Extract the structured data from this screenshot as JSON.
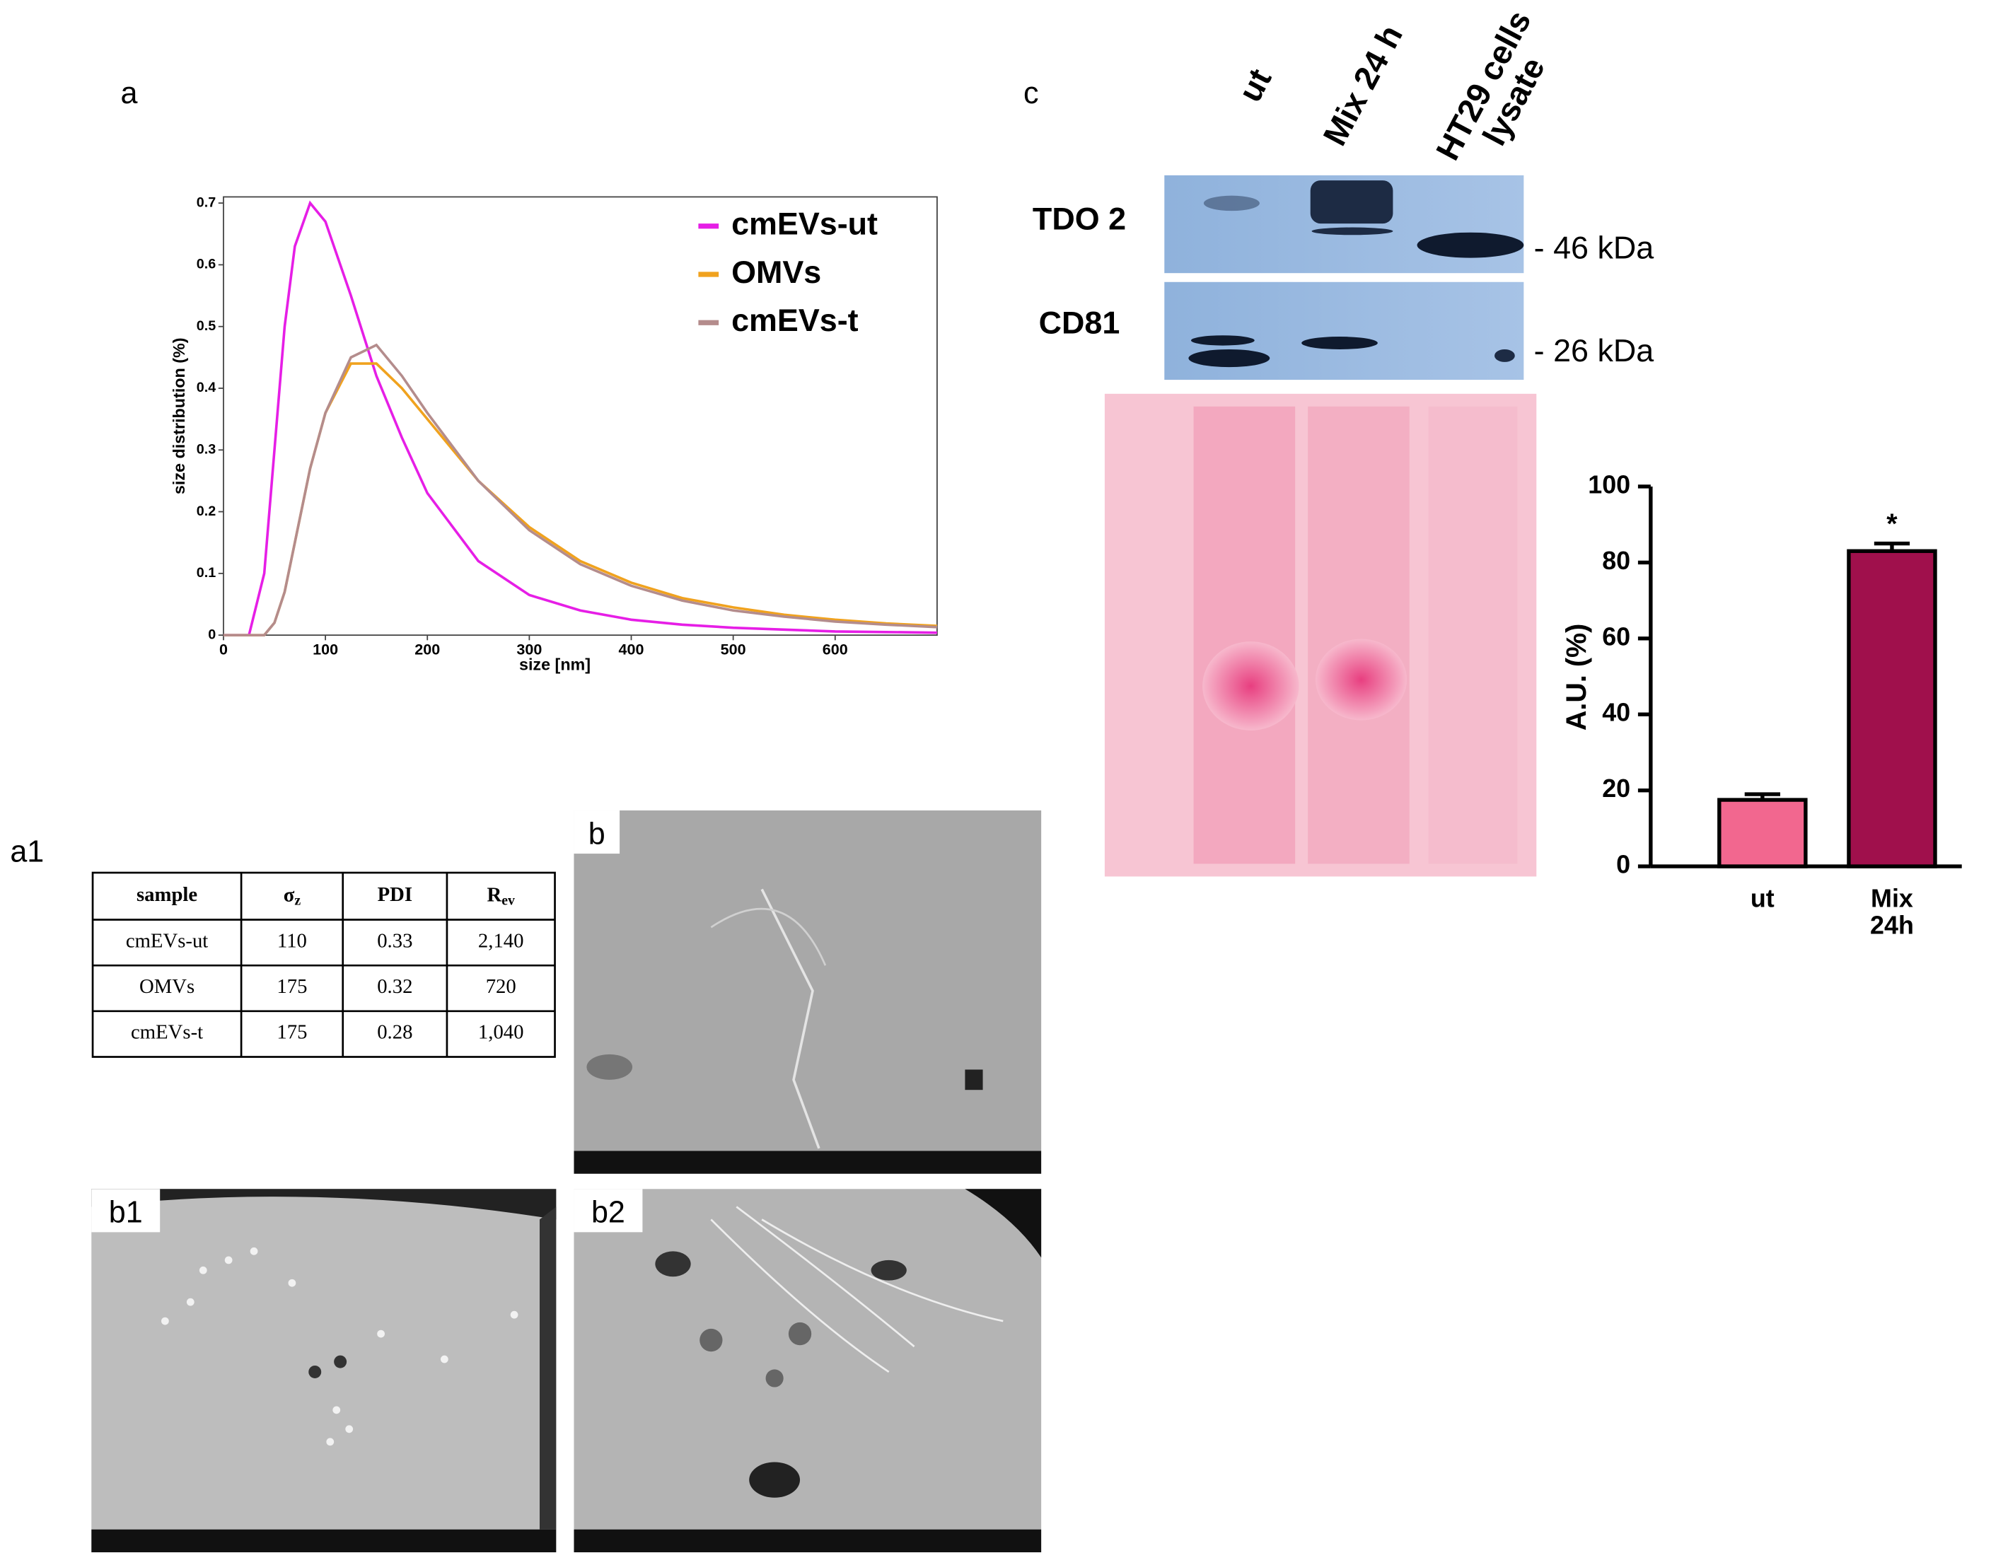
{
  "panels": {
    "a": "a",
    "a1": "a1",
    "b": "b",
    "b1": "b1",
    "b2": "b2",
    "c": "c"
  },
  "chart_data": [
    {
      "type": "line",
      "xlabel": "size [nm]",
      "ylabel": "size distribution (%)",
      "x": [
        0,
        25,
        40,
        50,
        60,
        70,
        85,
        100,
        125,
        150,
        175,
        200,
        250,
        300,
        350,
        400,
        450,
        500,
        550,
        600,
        650,
        700
      ],
      "series": [
        {
          "name": "cmEVs-ut",
          "color": "#e61ee6",
          "values": [
            0,
            0,
            0.1,
            0.3,
            0.5,
            0.63,
            0.7,
            0.67,
            0.55,
            0.42,
            0.32,
            0.23,
            0.12,
            0.065,
            0.04,
            0.025,
            0.017,
            0.012,
            0.009,
            0.006,
            0.005,
            0.004
          ]
        },
        {
          "name": "OMVs",
          "color": "#f0a21e",
          "values": [
            0,
            0,
            0,
            0.02,
            0.07,
            0.15,
            0.27,
            0.36,
            0.44,
            0.44,
            0.4,
            0.35,
            0.25,
            0.175,
            0.12,
            0.085,
            0.06,
            0.045,
            0.033,
            0.025,
            0.019,
            0.015
          ]
        },
        {
          "name": "cmEVs-t",
          "color": "#b48c8c",
          "values": [
            0,
            0,
            0,
            0.02,
            0.07,
            0.15,
            0.27,
            0.36,
            0.45,
            0.47,
            0.42,
            0.36,
            0.25,
            0.17,
            0.115,
            0.08,
            0.056,
            0.04,
            0.03,
            0.022,
            0.017,
            0.013
          ]
        }
      ],
      "xlim": [
        0,
        700
      ],
      "xticks": [
        0,
        100,
        200,
        300,
        400,
        500,
        600
      ],
      "ylim": [
        0,
        0.71
      ],
      "yticks": [
        0,
        0.1,
        0.2,
        0.3,
        0.4,
        0.5,
        0.6,
        0.7
      ]
    },
    {
      "type": "bar",
      "ylabel": "A.U. (%)",
      "categories": [
        "ut",
        "Mix 24h"
      ],
      "values": [
        17.5,
        83
      ],
      "errors": [
        1.5,
        2
      ],
      "colors": [
        "#f2678f",
        "#a0104c"
      ],
      "annotation": "*",
      "ylim": [
        0,
        100
      ],
      "yticks": [
        0,
        20,
        40,
        60,
        80,
        100
      ]
    }
  ],
  "table": {
    "header": [
      "sample",
      {
        "main": "σ",
        "sub": "z"
      },
      "PDI",
      {
        "main": "R",
        "sub": "ev"
      }
    ],
    "rows": [
      [
        "cmEVs-ut",
        "110",
        "0.33",
        "2,140"
      ],
      [
        "OMVs",
        "175",
        "0.32",
        "720"
      ],
      [
        "cmEVs-t",
        "175",
        "0.28",
        "1,040"
      ]
    ]
  },
  "blot": {
    "lanes": [
      "ut",
      "Mix 24 h",
      "HT29 cells lysate"
    ],
    "rows": [
      "TDO 2",
      "CD81"
    ],
    "markers": [
      "- 46 kDa",
      "- 26 kDa"
    ]
  }
}
